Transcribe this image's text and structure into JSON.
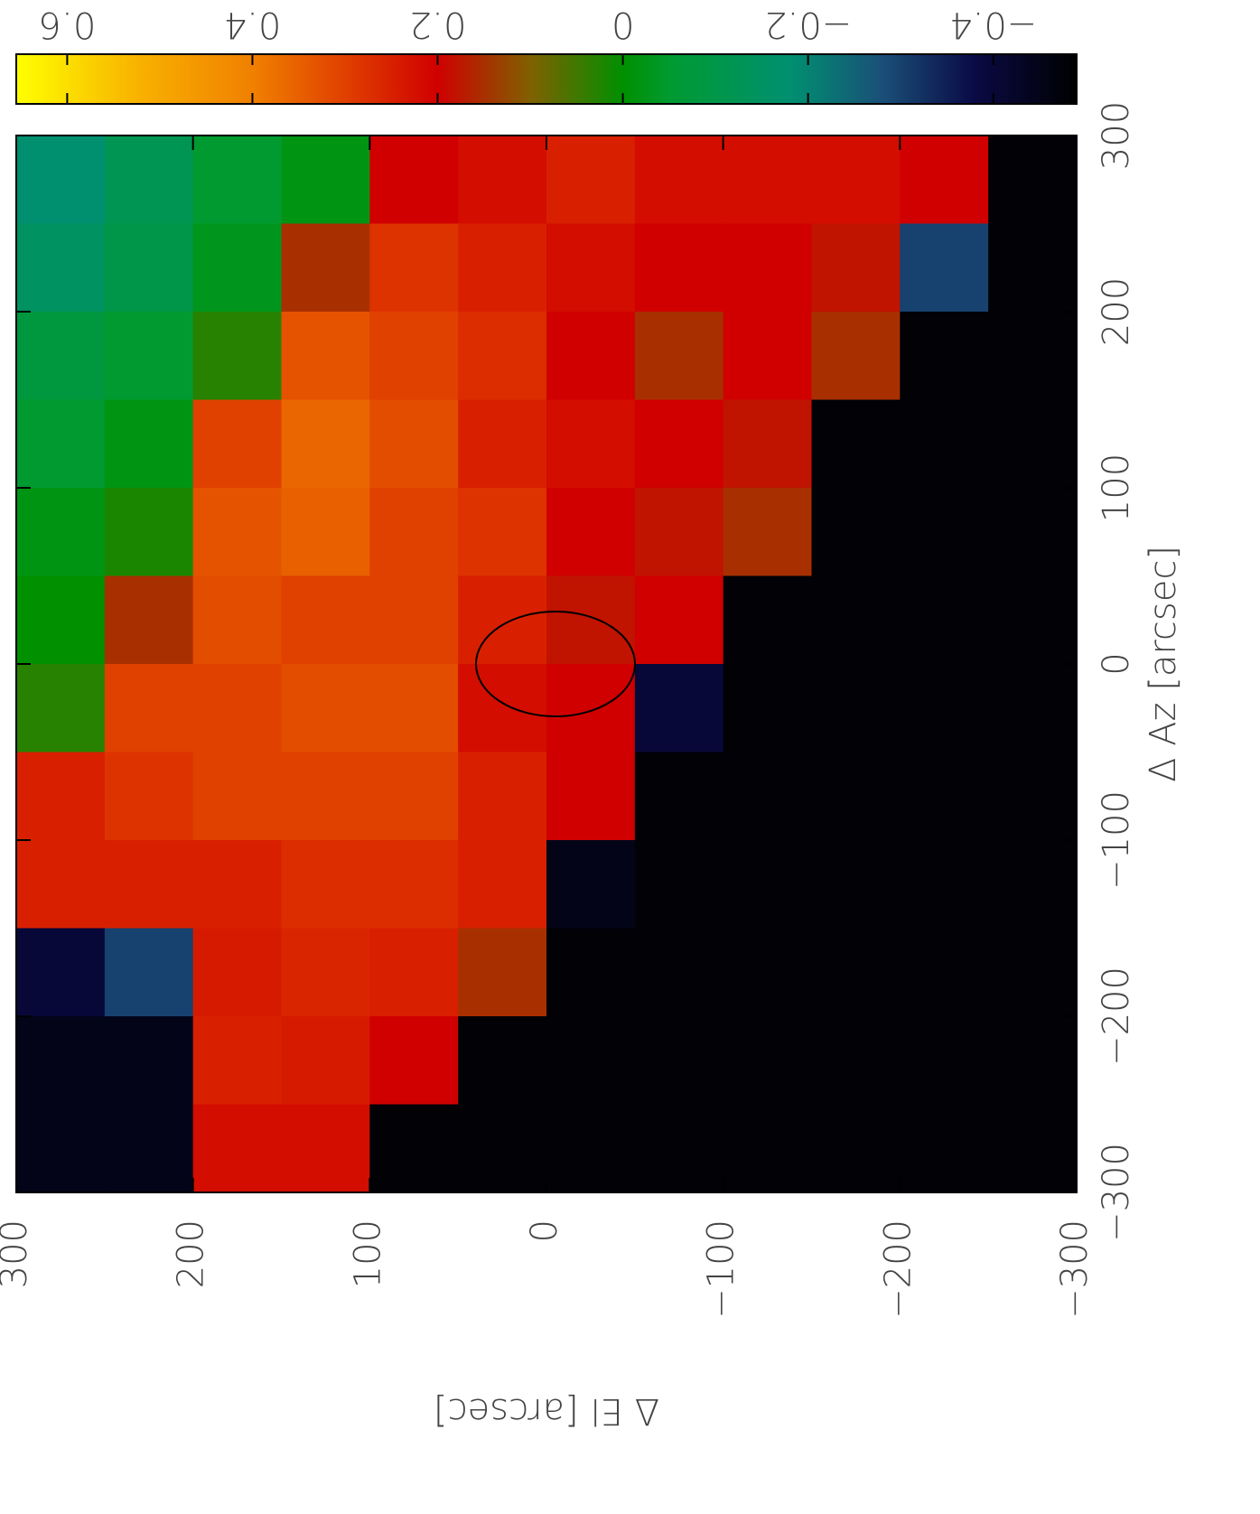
{
  "chart_data": {
    "type": "heatmap",
    "xlabel": "Δ Az [arcsec]",
    "ylabel": "Δ El [arcsec]",
    "x": [
      -275,
      -225,
      -175,
      -125,
      -75,
      -25,
      25,
      75,
      125,
      175,
      225,
      275
    ],
    "y": [
      275,
      225,
      175,
      125,
      75,
      25,
      -25,
      -75,
      -125,
      -175,
      -225,
      -275
    ],
    "z": [
      [
        -0.45,
        -0.45,
        -0.4,
        0.25,
        0.25,
        0.03,
        0.0,
        -0.02,
        -0.05,
        -0.08,
        -0.15,
        -0.18
      ],
      [
        -0.45,
        -0.45,
        -0.3,
        0.25,
        0.28,
        0.3,
        0.15,
        0.02,
        -0.02,
        -0.05,
        -0.1,
        -0.12
      ],
      [
        0.22,
        0.25,
        0.24,
        0.25,
        0.3,
        0.3,
        0.32,
        0.33,
        0.3,
        0.03,
        -0.03,
        -0.05
      ],
      [
        0.22,
        0.24,
        0.26,
        0.27,
        0.3,
        0.32,
        0.3,
        0.35,
        0.36,
        0.33,
        0.15,
        -0.02
      ],
      [
        -0.48,
        0.2,
        0.25,
        0.27,
        0.3,
        0.32,
        0.3,
        0.3,
        0.32,
        0.3,
        0.28,
        0.2
      ],
      [
        -0.48,
        -0.48,
        0.15,
        0.25,
        0.25,
        0.22,
        0.25,
        0.28,
        0.25,
        0.27,
        0.25,
        0.22
      ],
      [
        -0.48,
        -0.48,
        -0.48,
        -0.45,
        0.2,
        0.2,
        0.18,
        0.2,
        0.22,
        0.2,
        0.22,
        0.25
      ],
      [
        -0.48,
        -0.48,
        -0.48,
        -0.48,
        -0.48,
        -0.4,
        0.2,
        0.18,
        0.2,
        0.15,
        0.2,
        0.22
      ],
      [
        -0.48,
        -0.48,
        -0.48,
        -0.48,
        -0.48,
        -0.48,
        -0.48,
        0.15,
        0.18,
        0.2,
        0.2,
        0.22
      ],
      [
        -0.48,
        -0.48,
        -0.48,
        -0.48,
        -0.48,
        -0.48,
        -0.48,
        -0.48,
        -0.48,
        0.15,
        0.18,
        0.22
      ],
      [
        -0.48,
        -0.48,
        -0.48,
        -0.48,
        -0.48,
        -0.48,
        -0.48,
        -0.48,
        -0.48,
        -0.48,
        -0.3,
        0.2
      ],
      [
        -0.48,
        -0.48,
        -0.48,
        -0.48,
        -0.48,
        -0.48,
        -0.48,
        -0.48,
        -0.48,
        -0.48,
        -0.48,
        -0.48
      ]
    ],
    "xlim": [
      -300,
      300
    ],
    "ylim": [
      -300,
      300
    ],
    "xticks": [
      {
        "value": -300,
        "label": "−300"
      },
      {
        "value": -200,
        "label": "−200"
      },
      {
        "value": -100,
        "label": "−100"
      },
      0,
      100,
      200,
      300
    ],
    "yticks": [
      {
        "value": -300,
        "label": "−300"
      },
      {
        "value": -200,
        "label": "−200"
      },
      {
        "value": -100,
        "label": "−100"
      },
      0,
      100,
      200,
      300
    ],
    "clim": [
      -0.49,
      0.655
    ],
    "cticks": [
      0.6,
      0.4,
      0.2,
      0,
      {
        "value": -0.2,
        "label": "−0.2"
      },
      {
        "value": -0.4,
        "label": "−0.4"
      }
    ],
    "colormap": [
      {
        "value": -0.49,
        "color": "#000000"
      },
      {
        "value": -0.38,
        "color": "#0a0a45"
      },
      {
        "value": -0.28,
        "color": "#1a4f78"
      },
      {
        "value": -0.18,
        "color": "#009070"
      },
      {
        "value": -0.05,
        "color": "#009a30"
      },
      {
        "value": 0,
        "color": "#009000"
      },
      {
        "value": 0.1,
        "color": "#806000"
      },
      {
        "value": 0.2,
        "color": "#d00000"
      },
      {
        "value": 0.3,
        "color": "#e04000"
      },
      {
        "value": 0.4,
        "color": "#f08000"
      },
      {
        "value": 0.52,
        "color": "#f8b000"
      },
      {
        "value": 0.655,
        "color": "#ffff00"
      }
    ]
  }
}
